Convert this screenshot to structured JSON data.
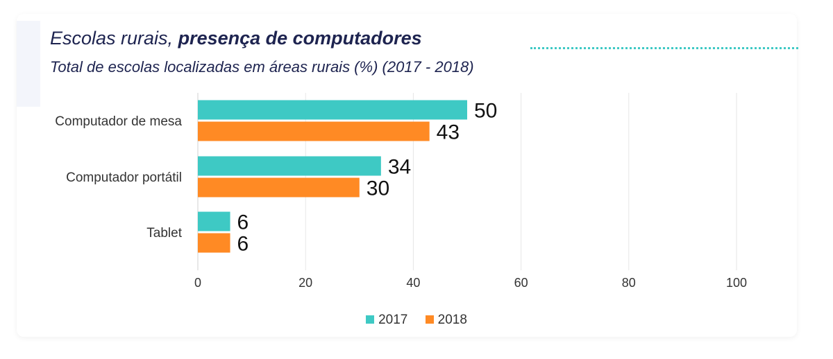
{
  "header": {
    "title_regular": "Escolas rurais, ",
    "title_bold": "presença de computadores",
    "subtitle": "Total de escolas localizadas em áreas rurais (%) (2017 - 2018)"
  },
  "colors": {
    "series_2017": "#3ec9c4",
    "series_2018": "#ff8a24",
    "accent_dots": "#3ec9c4",
    "title_text": "#1e2450"
  },
  "chart_data": {
    "type": "bar",
    "orientation": "horizontal",
    "categories": [
      "Computador de mesa",
      "Computador portátil",
      "Tablet"
    ],
    "series": [
      {
        "name": "2017",
        "values": [
          50,
          34,
          6
        ]
      },
      {
        "name": "2018",
        "values": [
          43,
          30,
          6
        ]
      }
    ],
    "xlim": [
      0,
      100
    ],
    "xticks": [
      0,
      20,
      40,
      60,
      80,
      100
    ],
    "grid": true,
    "legend": "bottom-center",
    "data_labels": true
  }
}
